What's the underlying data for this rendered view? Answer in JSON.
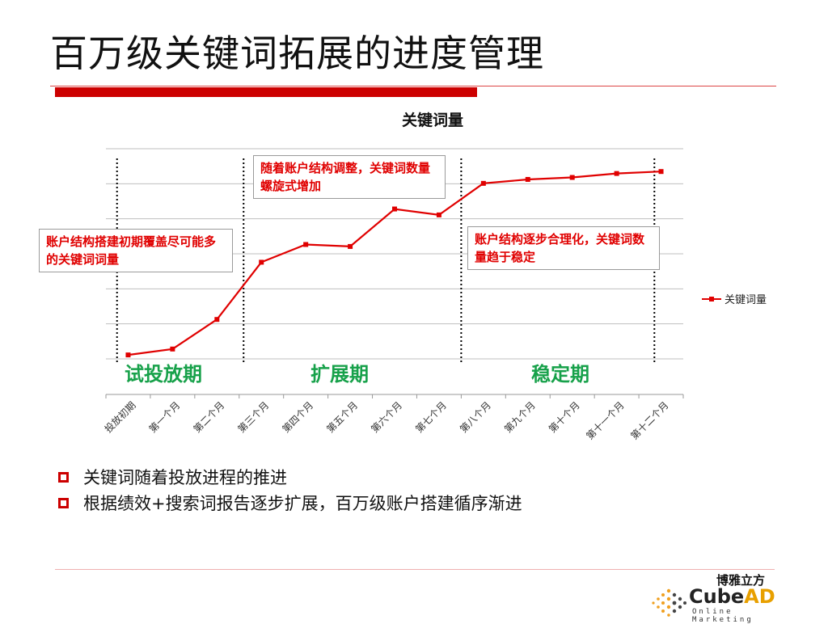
{
  "slide": {
    "title": "百万级关键词拓展的进度管理",
    "bullets": [
      "关键词随着投放进程的推进",
      "根据绩效+搜索词报告逐步扩展，百万级账户搭建循序渐进"
    ],
    "logo": {
      "cn": "博雅立方",
      "name_part1": "Cube",
      "name_part2": "AD",
      "sub": "Online Marketing"
    }
  },
  "annotations": [
    "账户结构搭建初期覆盖尽可能多的关键词词量",
    "随着账户结构调整，关键词数量螺旋式增加",
    "账户结构逐步合理化，关键词数量趋于稳定"
  ],
  "phases": [
    "试投放期",
    "扩展期",
    "稳定期"
  ],
  "chart_data": {
    "type": "line",
    "title": "关键词量",
    "categories": [
      "投放初期",
      "第一个月",
      "第二个月",
      "第三个月",
      "第四个月",
      "第五个月",
      "第六个月",
      "第七个月",
      "第八个月",
      "第九个月",
      "第十个月",
      "第十一个月",
      "第十二个月"
    ],
    "series": [
      {
        "name": "关键词量",
        "values": [
          0.2,
          0.5,
          2.0,
          4.9,
          5.8,
          5.7,
          7.6,
          7.3,
          8.9,
          9.1,
          9.2,
          9.4,
          9.5
        ]
      }
    ],
    "ylim": [
      0,
      10
    ],
    "y_gridlines": 6,
    "y_axis_labels_shown": false,
    "phase_dividers_after_category_index": [
      0.25,
      3.1,
      8.0,
      12.35
    ],
    "legend_position": "right",
    "colors": {
      "line": "#e00000",
      "grid": "#bfbfbf",
      "divider": "#000000"
    },
    "grid": true
  }
}
